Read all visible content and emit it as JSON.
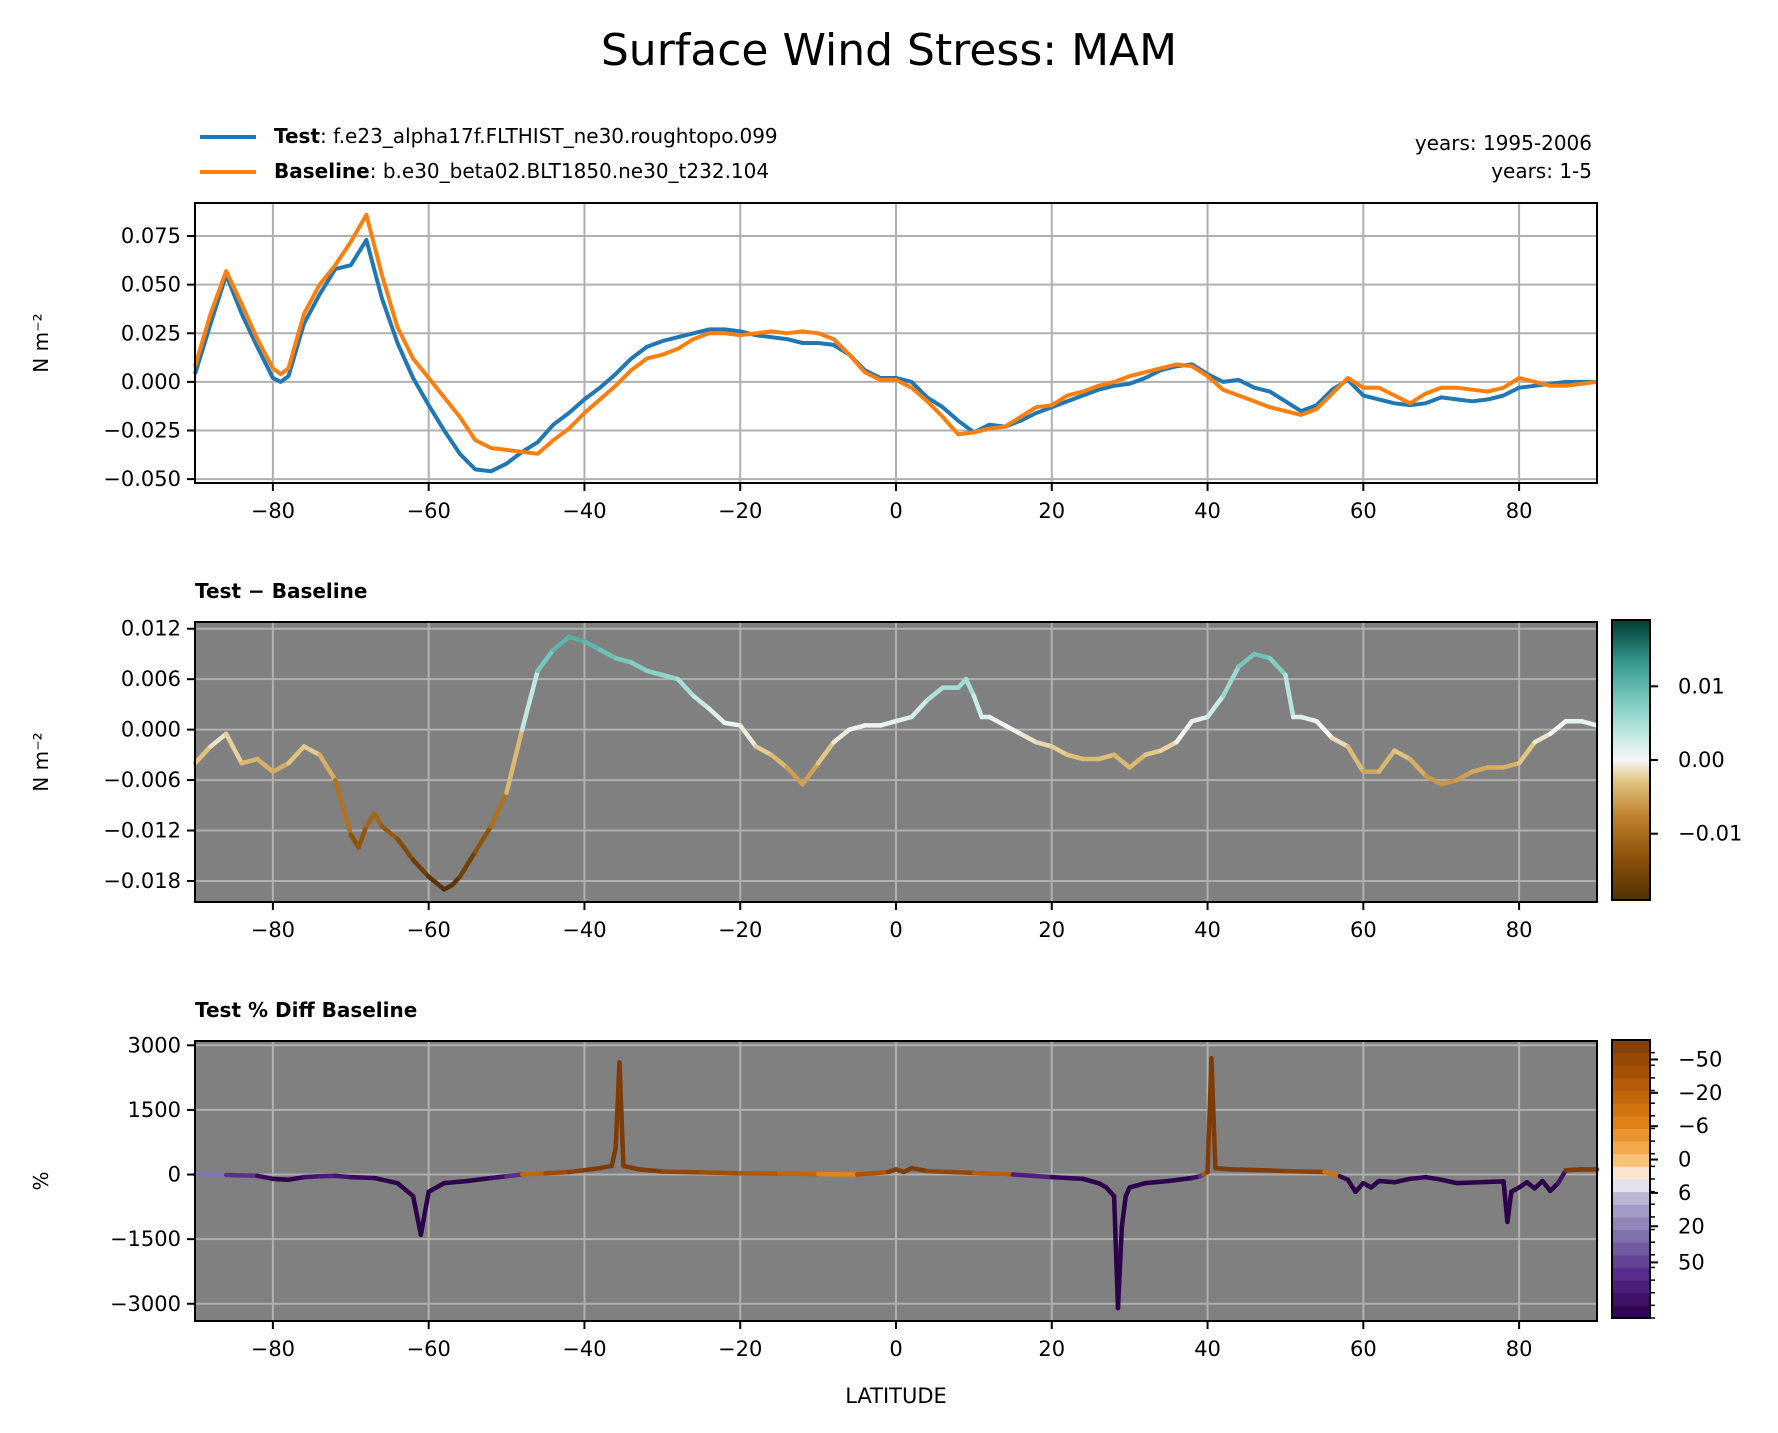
{
  "figure_title": "Surface Wind Stress: MAM",
  "legend": {
    "entries": [
      {
        "label_bold": "Test",
        "label_rest": ": f.e23_alpha17f.FLTHIST_ne30.roughtopo.099",
        "color": "#1f77b4"
      },
      {
        "label_bold": "Baseline",
        "label_rest": ": b.e30_beta02.BLT1850.ne30_t232.104",
        "color": "#ff7f0e"
      }
    ],
    "years_test": "years: 1995-2006",
    "years_baseline": "years: 1-5"
  },
  "colors": {
    "test": "#1f77b4",
    "baseline": "#ff7f0e",
    "panel_bg": "#808080",
    "grid": "#b0b0b0"
  },
  "chart_data": [
    {
      "type": "line",
      "title": "",
      "xlabel": "",
      "ylabel": "N m⁻²",
      "xlim": [
        -90,
        90
      ],
      "ylim": [
        -0.052,
        0.092
      ],
      "xticks": [
        "−80",
        "−60",
        "−40",
        "−20",
        "0",
        "20",
        "40",
        "60",
        "80"
      ],
      "yticks": [
        "−0.050",
        "−0.025",
        "0.000",
        "0.025",
        "0.050",
        "0.075"
      ],
      "grid": true,
      "legend": "top-left, above plot",
      "series": [
        {
          "name": "Test",
          "x": [
            -90,
            -88,
            -86,
            -84,
            -82,
            -80,
            -79,
            -78,
            -76,
            -74,
            -72,
            -70,
            -68,
            -66,
            -64,
            -62,
            -60,
            -58,
            -56,
            -54,
            -52,
            -50,
            -48,
            -46,
            -44,
            -42,
            -40,
            -38,
            -36,
            -34,
            -32,
            -30,
            -28,
            -26,
            -24,
            -22,
            -20,
            -18,
            -16,
            -14,
            -12,
            -10,
            -8,
            -6,
            -4,
            -2,
            0,
            2,
            4,
            6,
            8,
            10,
            12,
            14,
            16,
            18,
            20,
            22,
            24,
            26,
            28,
            30,
            32,
            34,
            36,
            38,
            40,
            42,
            44,
            46,
            48,
            50,
            52,
            54,
            56,
            58,
            60,
            62,
            64,
            66,
            68,
            70,
            72,
            74,
            76,
            78,
            80,
            82,
            84,
            86,
            88,
            90
          ],
          "y": [
            0.004,
            0.03,
            0.055,
            0.035,
            0.018,
            0.002,
            0.0,
            0.003,
            0.03,
            0.045,
            0.058,
            0.06,
            0.073,
            0.043,
            0.02,
            0.002,
            -0.012,
            -0.025,
            -0.037,
            -0.045,
            -0.046,
            -0.042,
            -0.036,
            -0.031,
            -0.022,
            -0.016,
            -0.009,
            -0.003,
            0.004,
            0.012,
            0.018,
            0.021,
            0.023,
            0.025,
            0.027,
            0.027,
            0.026,
            0.024,
            0.023,
            0.022,
            0.02,
            0.02,
            0.019,
            0.014,
            0.006,
            0.002,
            0.002,
            0.0,
            -0.008,
            -0.013,
            -0.02,
            -0.026,
            -0.022,
            -0.023,
            -0.02,
            -0.016,
            -0.013,
            -0.01,
            -0.007,
            -0.004,
            -0.002,
            -0.001,
            0.002,
            0.006,
            0.008,
            0.009,
            0.004,
            0.0,
            0.001,
            -0.003,
            -0.005,
            -0.01,
            -0.015,
            -0.012,
            -0.004,
            0.001,
            -0.007,
            -0.009,
            -0.011,
            -0.012,
            -0.011,
            -0.008,
            -0.009,
            -0.01,
            -0.009,
            -0.007,
            -0.003,
            -0.002,
            -0.001,
            0.0,
            0.0,
            0.0
          ]
        },
        {
          "name": "Baseline",
          "x": [
            -90,
            -88,
            -86,
            -84,
            -82,
            -80,
            -79,
            -78,
            -76,
            -74,
            -72,
            -70,
            -68,
            -66,
            -64,
            -62,
            -60,
            -58,
            -56,
            -54,
            -52,
            -50,
            -48,
            -46,
            -44,
            -42,
            -40,
            -38,
            -36,
            -34,
            -32,
            -30,
            -28,
            -26,
            -24,
            -22,
            -20,
            -18,
            -16,
            -14,
            -12,
            -10,
            -8,
            -6,
            -4,
            -2,
            0,
            2,
            4,
            6,
            8,
            10,
            12,
            14,
            16,
            18,
            20,
            22,
            24,
            26,
            28,
            30,
            32,
            34,
            36,
            38,
            40,
            42,
            44,
            46,
            48,
            50,
            52,
            54,
            56,
            58,
            60,
            62,
            64,
            66,
            68,
            70,
            72,
            74,
            76,
            78,
            80,
            82,
            84,
            86,
            88,
            90
          ],
          "y": [
            0.008,
            0.035,
            0.057,
            0.04,
            0.022,
            0.007,
            0.004,
            0.007,
            0.035,
            0.05,
            0.06,
            0.072,
            0.086,
            0.055,
            0.028,
            0.012,
            0.002,
            -0.008,
            -0.018,
            -0.03,
            -0.034,
            -0.035,
            -0.036,
            -0.037,
            -0.03,
            -0.024,
            -0.016,
            -0.009,
            -0.002,
            0.006,
            0.012,
            0.014,
            0.017,
            0.022,
            0.025,
            0.025,
            0.024,
            0.025,
            0.026,
            0.025,
            0.026,
            0.025,
            0.022,
            0.014,
            0.005,
            0.001,
            0.001,
            -0.003,
            -0.01,
            -0.018,
            -0.027,
            -0.026,
            -0.024,
            -0.023,
            -0.018,
            -0.013,
            -0.012,
            -0.007,
            -0.005,
            -0.002,
            0.0,
            0.003,
            0.005,
            0.007,
            0.009,
            0.008,
            0.003,
            -0.004,
            -0.007,
            -0.01,
            -0.013,
            -0.015,
            -0.017,
            -0.014,
            -0.006,
            0.002,
            -0.003,
            -0.003,
            -0.007,
            -0.011,
            -0.006,
            -0.003,
            -0.003,
            -0.004,
            -0.005,
            -0.003,
            0.002,
            0.0,
            -0.002,
            -0.002,
            -0.001,
            0.0
          ]
        }
      ]
    },
    {
      "type": "line",
      "title": "Test − Baseline",
      "xlabel": "",
      "ylabel": "N m⁻²",
      "xlim": [
        -90,
        90
      ],
      "ylim": [
        -0.0205,
        0.0128
      ],
      "xticks": [
        "−80",
        "−60",
        "−40",
        "−20",
        "0",
        "20",
        "40",
        "60",
        "80"
      ],
      "yticks": [
        "−0.018",
        "−0.012",
        "−0.006",
        "0.000",
        "0.006",
        "0.012"
      ],
      "grid": true,
      "colormap": "BrBG",
      "color_range": [
        -0.019,
        0.019
      ],
      "colorbar_ticks": [
        "−0.01",
        "0.00",
        "0.01"
      ],
      "x": [
        -90,
        -88,
        -86,
        -84,
        -82,
        -80,
        -78,
        -76,
        -74,
        -72,
        -70,
        -69,
        -68,
        -67,
        -66,
        -64,
        -62,
        -60,
        -58,
        -57,
        -56,
        -54,
        -52,
        -50,
        -48,
        -46,
        -44,
        -42,
        -40,
        -38,
        -36,
        -34,
        -32,
        -30,
        -28,
        -26,
        -24,
        -22,
        -20,
        -18,
        -16,
        -14,
        -12,
        -10,
        -8,
        -6,
        -4,
        -2,
        0,
        2,
        4,
        6,
        8,
        9,
        10,
        11,
        12,
        14,
        16,
        18,
        20,
        22,
        24,
        26,
        28,
        30,
        32,
        34,
        36,
        38,
        40,
        42,
        44,
        46,
        48,
        50,
        51,
        52,
        54,
        56,
        58,
        60,
        62,
        64,
        66,
        68,
        70,
        72,
        74,
        76,
        78,
        80,
        82,
        84,
        86,
        88,
        90
      ],
      "y": [
        -0.004,
        -0.002,
        -0.0005,
        -0.004,
        -0.0035,
        -0.005,
        -0.004,
        -0.002,
        -0.003,
        -0.006,
        -0.0125,
        -0.014,
        -0.0115,
        -0.01,
        -0.0115,
        -0.013,
        -0.0155,
        -0.0175,
        -0.019,
        -0.0185,
        -0.0175,
        -0.0145,
        -0.0115,
        -0.0075,
        0.0,
        0.007,
        0.0095,
        0.011,
        0.0105,
        0.0095,
        0.0085,
        0.008,
        0.007,
        0.0065,
        0.006,
        0.004,
        0.0025,
        0.0008,
        0.0005,
        -0.002,
        -0.003,
        -0.0045,
        -0.0065,
        -0.004,
        -0.0015,
        0.0,
        0.0005,
        0.0005,
        0.001,
        0.0015,
        0.0035,
        0.005,
        0.005,
        0.006,
        0.004,
        0.0015,
        0.0015,
        0.0005,
        -0.0005,
        -0.0015,
        -0.002,
        -0.003,
        -0.0035,
        -0.0035,
        -0.003,
        -0.0045,
        -0.003,
        -0.0025,
        -0.0015,
        0.001,
        0.0015,
        0.004,
        0.0075,
        0.009,
        0.0085,
        0.0065,
        0.0015,
        0.0015,
        0.001,
        -0.001,
        -0.002,
        -0.005,
        -0.005,
        -0.0025,
        -0.0035,
        -0.0055,
        -0.0065,
        -0.006,
        -0.005,
        -0.0045,
        -0.0045,
        -0.004,
        -0.0015,
        -0.0005,
        0.001,
        0.001,
        0.0005
      ]
    },
    {
      "type": "line",
      "title": "Test % Diff Baseline",
      "xlabel": "LATITUDE",
      "ylabel": "%",
      "xlim": [
        -90,
        90
      ],
      "ylim": [
        -3400,
        3100
      ],
      "xticks": [
        "−80",
        "−60",
        "−40",
        "−20",
        "0",
        "20",
        "40",
        "60",
        "80"
      ],
      "yticks": [
        "−3000",
        "−1500",
        "0",
        "1500",
        "3000"
      ],
      "grid": true,
      "colormap": "PuOr_r",
      "colorbar_ticks": [
        "−50",
        "−20",
        "−6",
        "0",
        "6",
        "20",
        "50"
      ],
      "x": [
        -90,
        -86,
        -82,
        -80,
        -78,
        -76,
        -74,
        -72,
        -70,
        -67,
        -64,
        -62,
        -61,
        -60,
        -58,
        -55,
        -52,
        -50,
        -48,
        -45,
        -42,
        -40,
        -38,
        -36.5,
        -36,
        -35.5,
        -35,
        -33,
        -30,
        -25,
        -20,
        -15,
        -10,
        -5,
        -1,
        0,
        1,
        2,
        4,
        10,
        15,
        20,
        24,
        26,
        27,
        28,
        28.5,
        29,
        29.5,
        30,
        32,
        35,
        38,
        39,
        39.5,
        40,
        40.5,
        41,
        43,
        47,
        50,
        55,
        57,
        58,
        59,
        60,
        61,
        62,
        64,
        66,
        68,
        70,
        72,
        75,
        78,
        78.5,
        79,
        80,
        81,
        82,
        83,
        84,
        85,
        86,
        88,
        90
      ],
      "y": [
        0,
        -10,
        -30,
        -100,
        -120,
        -60,
        -40,
        -30,
        -60,
        -80,
        -200,
        -500,
        -1400,
        -400,
        -200,
        -150,
        -80,
        -40,
        0,
        30,
        60,
        100,
        150,
        200,
        600,
        2600,
        200,
        120,
        70,
        50,
        30,
        20,
        10,
        0,
        60,
        120,
        60,
        150,
        80,
        40,
        0,
        -60,
        -100,
        -200,
        -300,
        -500,
        -3100,
        -1200,
        -500,
        -300,
        -200,
        -150,
        -80,
        -40,
        0,
        60,
        2700,
        150,
        120,
        100,
        80,
        60,
        -40,
        -120,
        -400,
        -200,
        -300,
        -150,
        -180,
        -100,
        -60,
        -120,
        -200,
        -180,
        -160,
        -1100,
        -400,
        -300,
        -180,
        -320,
        -150,
        -380,
        -200,
        100,
        120,
        120
      ]
    }
  ]
}
